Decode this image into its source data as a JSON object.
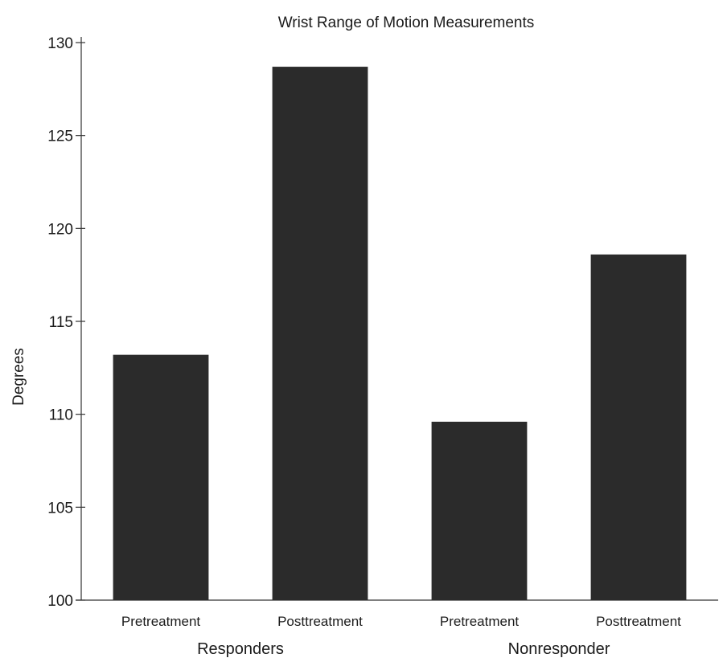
{
  "chart_data": {
    "type": "bar",
    "title": "Wrist Range of Motion Measurements",
    "ylabel": "Degrees",
    "xlabel": "",
    "ylim": [
      100,
      130
    ],
    "yticks": [
      100,
      105,
      110,
      115,
      120,
      125,
      130
    ],
    "grid": false,
    "legend": "none",
    "bar_color": "#2b2b2b",
    "axis_color": "#333333",
    "categories": [
      "Pretreatment",
      "Posttreatment",
      "Pretreatment",
      "Posttreatment"
    ],
    "groups": [
      {
        "label": "Responders",
        "category_indices": [
          0,
          1
        ]
      },
      {
        "label": "Nonresponder",
        "category_indices": [
          2,
          3
        ]
      }
    ],
    "values": [
      113.2,
      128.7,
      109.6,
      118.6
    ]
  }
}
